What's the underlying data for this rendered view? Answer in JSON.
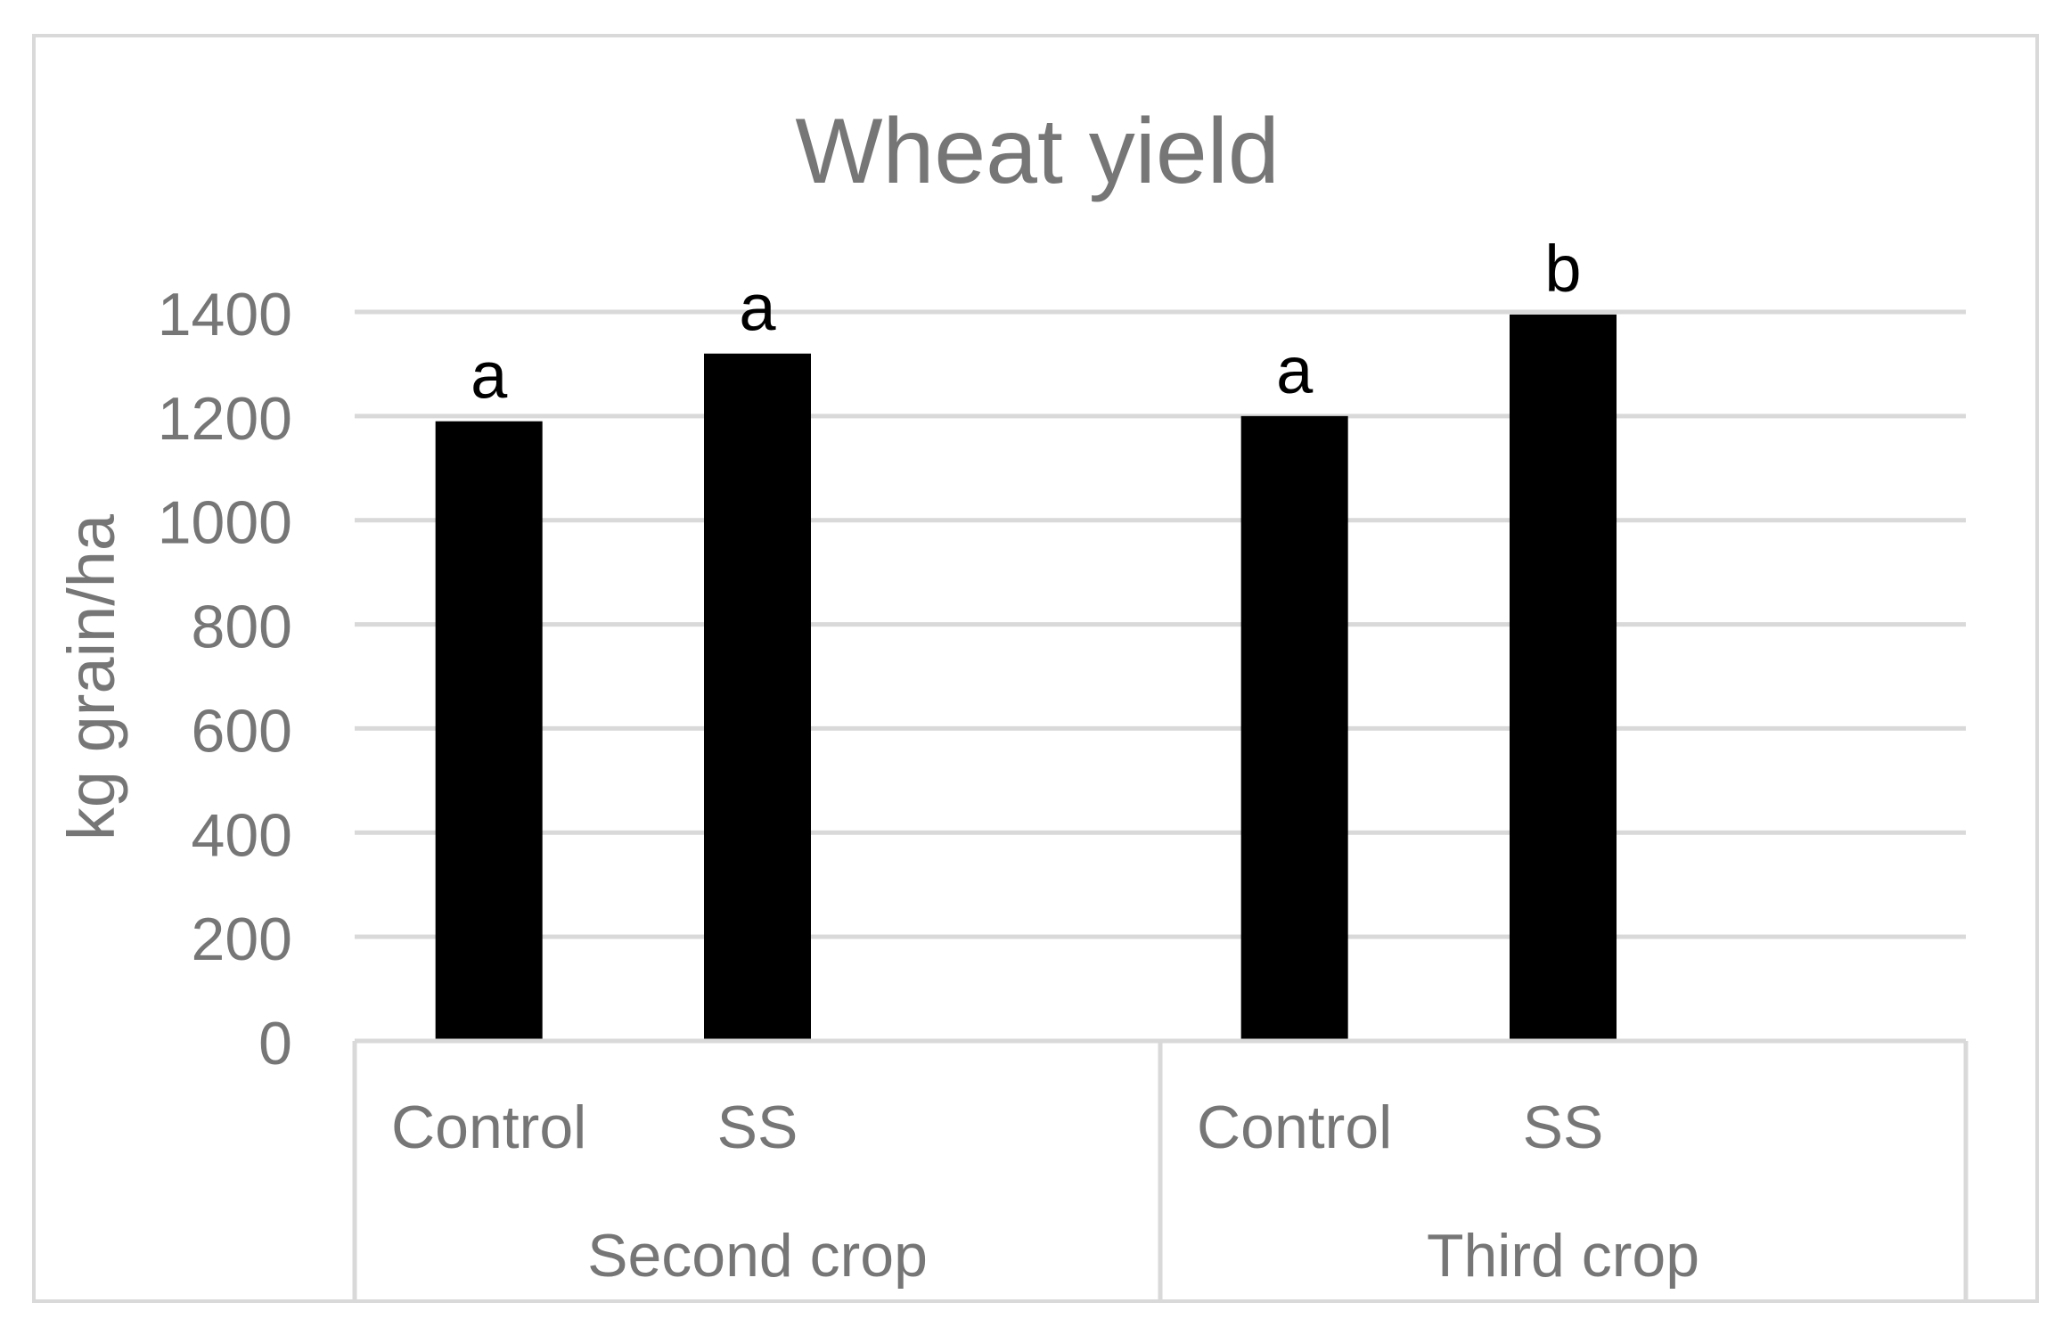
{
  "chart_data": {
    "type": "bar",
    "title": "Wheat yield",
    "xlabel": "",
    "ylabel": "kg grain/ha",
    "ylim": [
      0,
      1400
    ],
    "yticks": [
      0,
      200,
      400,
      600,
      800,
      1000,
      1200,
      1400
    ],
    "grid": true,
    "groups": [
      {
        "label": "Second crop",
        "bars": [
          {
            "category": "Control",
            "value": 1190,
            "annotation": "a"
          },
          {
            "category": "SS",
            "value": 1320,
            "annotation": "a"
          }
        ]
      },
      {
        "label": "Third crop",
        "bars": [
          {
            "category": "Control",
            "value": 1200,
            "annotation": "a"
          },
          {
            "category": "SS",
            "value": 1395,
            "annotation": "b"
          }
        ]
      }
    ],
    "colors": {
      "bar": "#000000",
      "grid": "#d9d9d9",
      "axis_text": "#767676",
      "annotation_text": "#000000",
      "frame": "#d9d9d9"
    }
  }
}
